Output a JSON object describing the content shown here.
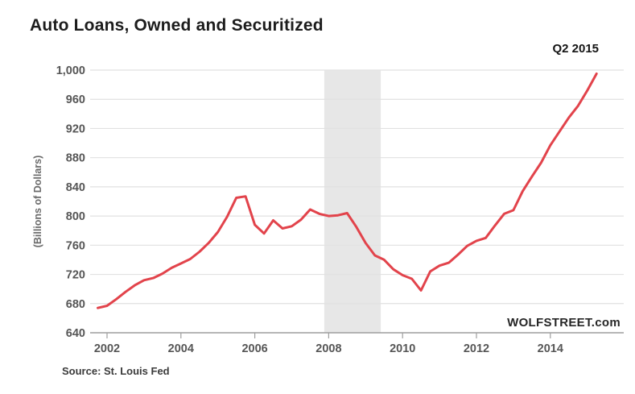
{
  "header": {
    "title": "Auto Loans, Owned and Securitized"
  },
  "annotations": {
    "latest_point_label": "Q2 2015",
    "watermark": "WOLFSTREET.com",
    "source": "Source: St. Louis Fed"
  },
  "chart_data": {
    "type": "line",
    "title": "Auto Loans, Owned and Securitized",
    "xlabel": "",
    "ylabel": "(Billions of Dollars)",
    "ylim": [
      640,
      1000
    ],
    "xlim": [
      2001.5,
      2016
    ],
    "grid": true,
    "legend_position": "none",
    "line_color": "#e2434b",
    "grid_color": "#e1e1e1",
    "axis_color": "#9e9e9e",
    "y_ticks": [
      640,
      680,
      720,
      760,
      800,
      840,
      880,
      920,
      960,
      1000
    ],
    "y_tick_labels": [
      "640",
      "680",
      "720",
      "760",
      "800",
      "840",
      "880",
      "920",
      "960",
      "1,000"
    ],
    "x_ticks": [
      2002,
      2004,
      2006,
      2008,
      2010,
      2012,
      2014
    ],
    "x_tick_labels": [
      "2002",
      "2004",
      "2006",
      "2008",
      "2010",
      "2012",
      "2014"
    ],
    "recession_band": {
      "x_start": 2007.88,
      "x_end": 2009.41,
      "color": "#e7e7e7",
      "note": "recession shading"
    },
    "end_point_label": "Q2 2015",
    "series": [
      {
        "name": "Auto Loans, Owned and Securitized ($ Billions, quarterly)",
        "x": [
          2001.75,
          2002.0,
          2002.25,
          2002.5,
          2002.75,
          2003.0,
          2003.25,
          2003.5,
          2003.75,
          2004.0,
          2004.25,
          2004.5,
          2004.75,
          2005.0,
          2005.25,
          2005.5,
          2005.75,
          2006.0,
          2006.25,
          2006.5,
          2006.75,
          2007.0,
          2007.25,
          2007.5,
          2007.75,
          2008.0,
          2008.25,
          2008.5,
          2008.75,
          2009.0,
          2009.25,
          2009.5,
          2009.75,
          2010.0,
          2010.25,
          2010.5,
          2010.75,
          2011.0,
          2011.25,
          2011.5,
          2011.75,
          2012.0,
          2012.25,
          2012.5,
          2012.75,
          2013.0,
          2013.25,
          2013.5,
          2013.75,
          2014.0,
          2014.25,
          2014.5,
          2014.75,
          2015.0,
          2015.25
        ],
        "values": [
          674,
          677,
          686,
          696,
          705,
          712,
          715,
          721,
          729,
          735,
          741,
          751,
          763,
          778,
          799,
          825,
          827,
          788,
          776,
          794,
          783,
          786,
          795,
          809,
          803,
          800,
          801,
          804,
          785,
          763,
          746,
          740,
          727,
          719,
          714,
          698,
          724,
          732,
          736,
          747,
          759,
          766,
          770,
          787,
          803,
          808,
          834,
          854,
          873,
          897,
          916,
          935,
          951,
          972,
          995
        ]
      }
    ]
  }
}
